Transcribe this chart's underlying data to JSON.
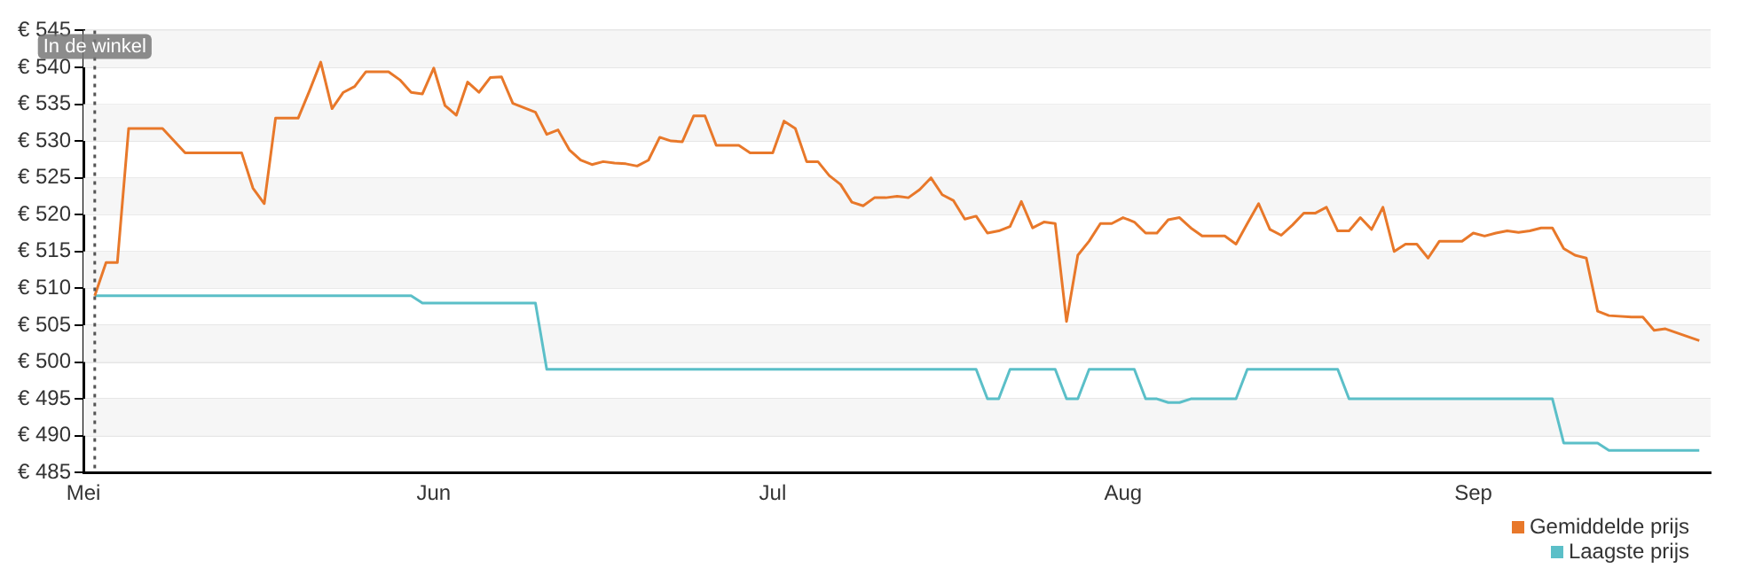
{
  "chart_data": {
    "type": "line",
    "legend": "bottom right",
    "grid": "y",
    "marker": "none",
    "line_style": "solid",
    "xlim": [
      "--05-01",
      "--09-22"
    ],
    "xticks": [
      {
        "value": "--05-01",
        "label": "Mei"
      },
      {
        "value": "--06-01",
        "label": "Jun"
      },
      {
        "value": "--07-01",
        "label": "Jul"
      },
      {
        "value": "--08-01",
        "label": "Aug"
      },
      {
        "value": "--09-01",
        "label": "Sep"
      }
    ],
    "ylim": [
      485,
      545
    ],
    "yticks": [
      {
        "value": 485,
        "label": "€ 485"
      },
      {
        "value": 490,
        "label": "€ 490"
      },
      {
        "value": 495,
        "label": "€ 495"
      },
      {
        "value": 500,
        "label": "€ 500"
      },
      {
        "value": 505,
        "label": "€ 505"
      },
      {
        "value": 510,
        "label": "€ 510"
      },
      {
        "value": 515,
        "label": "€ 515"
      },
      {
        "value": 520,
        "label": "€ 520"
      },
      {
        "value": 525,
        "label": "€ 525"
      },
      {
        "value": 530,
        "label": "€ 530"
      },
      {
        "value": 535,
        "label": "€ 535"
      },
      {
        "value": 540,
        "label": "€ 540"
      },
      {
        "value": 545,
        "label": "€ 545"
      }
    ],
    "ref_lines": [
      {
        "axis": "x",
        "value": "--05-02",
        "label": "In de winkel",
        "color": "#555555",
        "line_style": "dotted"
      }
    ],
    "series": [
      {
        "name": "Gemiddelde prijs",
        "color": "#e8782a",
        "x": [
          "--05-02",
          "--05-03",
          "--05-04",
          "--05-05",
          "--05-08",
          "--05-10",
          "--05-15",
          "--05-16",
          "--05-17",
          "--05-18",
          "--05-20",
          "--05-21",
          "--05-22",
          "--05-23",
          "--05-24",
          "--05-25",
          "--05-26",
          "--05-28",
          "--05-29",
          "--05-30",
          "--05-31",
          "--06-01",
          "--06-02",
          "--06-03",
          "--06-04",
          "--06-05",
          "--06-06",
          "--06-07",
          "--06-08",
          "--06-10",
          "--06-11",
          "--06-12",
          "--06-13",
          "--06-14",
          "--06-15",
          "--06-16",
          "--06-17",
          "--06-18",
          "--06-19",
          "--06-20",
          "--06-21",
          "--06-22",
          "--06-23",
          "--06-24",
          "--06-25",
          "--06-26",
          "--06-28",
          "--06-29",
          "--07-01",
          "--07-02",
          "--07-03",
          "--07-04",
          "--07-05",
          "--07-06",
          "--07-07",
          "--07-08",
          "--07-09",
          "--07-10",
          "--07-11",
          "--07-12",
          "--07-13",
          "--07-14",
          "--07-15",
          "--07-16",
          "--07-17",
          "--07-18",
          "--07-19",
          "--07-20",
          "--07-21",
          "--07-22",
          "--07-23",
          "--07-24",
          "--07-25",
          "--07-26",
          "--07-27",
          "--07-28",
          "--07-29",
          "--07-30",
          "--07-31",
          "--08-01",
          "--08-02",
          "--08-03",
          "--08-04",
          "--08-05",
          "--08-06",
          "--08-07",
          "--08-08",
          "--08-10",
          "--08-11",
          "--08-12",
          "--08-13",
          "--08-14",
          "--08-15",
          "--08-16",
          "--08-17",
          "--08-18",
          "--08-19",
          "--08-20",
          "--08-21",
          "--08-22",
          "--08-23",
          "--08-24",
          "--08-25",
          "--08-26",
          "--08-27",
          "--08-28",
          "--08-29",
          "--08-31",
          "--09-01",
          "--09-02",
          "--09-03",
          "--09-04",
          "--09-05",
          "--09-06",
          "--09-07",
          "--09-08",
          "--09-09",
          "--09-10",
          "--09-11",
          "--09-12",
          "--09-13",
          "--09-15",
          "--09-16",
          "--09-17",
          "--09-18",
          "--09-21"
        ],
        "values": [
          509,
          513.5,
          513.5,
          531.7,
          531.7,
          528.4,
          528.4,
          523.6,
          521.5,
          533.1,
          533.1,
          536.8,
          540.7,
          534.4,
          536.6,
          537.4,
          539.4,
          539.4,
          538.3,
          536.6,
          536.4,
          539.9,
          534.8,
          533.5,
          538,
          536.6,
          538.6,
          538.7,
          535.1,
          533.9,
          530.9,
          531.5,
          528.8,
          527.4,
          526.8,
          527.2,
          527,
          526.9,
          526.6,
          527.4,
          530.5,
          530,
          529.9,
          533.4,
          533.4,
          529.4,
          529.4,
          528.4,
          528.4,
          532.7,
          531.7,
          527.2,
          527.2,
          525.3,
          524.1,
          521.7,
          521.2,
          522.3,
          522.3,
          522.5,
          522.3,
          523.4,
          525,
          522.7,
          521.9,
          519.4,
          519.8,
          517.5,
          517.8,
          518.4,
          521.8,
          518.2,
          519,
          518.8,
          505.5,
          514.5,
          516.4,
          518.8,
          518.8,
          519.6,
          519,
          517.5,
          517.5,
          519.3,
          519.6,
          518.2,
          517.1,
          517.1,
          516,
          518.8,
          521.5,
          518,
          517.2,
          518.6,
          520.2,
          520.2,
          521,
          517.8,
          517.8,
          519.6,
          518,
          521,
          515,
          516,
          516,
          514.1,
          516.4,
          516.4,
          517.5,
          517.1,
          517.5,
          517.8,
          517.6,
          517.8,
          518.2,
          518.2,
          515.4,
          514.5,
          514.1,
          506.9,
          506.3,
          506.1,
          506.1,
          504.3,
          504.5,
          502.9
        ]
      },
      {
        "name": "Laagste prijs",
        "color": "#5bbfc8",
        "x": [
          "--05-02",
          "--05-30",
          "--05-31",
          "--06-10",
          "--06-11",
          "--07-19",
          "--07-20",
          "--07-21",
          "--07-22",
          "--07-26",
          "--07-27",
          "--07-28",
          "--07-29",
          "--08-02",
          "--08-03",
          "--08-04",
          "--08-05",
          "--08-06",
          "--08-07",
          "--08-11",
          "--08-12",
          "--08-20",
          "--08-21",
          "--09-08",
          "--09-09",
          "--09-12",
          "--09-13",
          "--09-21"
        ],
        "values": [
          509,
          509,
          508,
          508,
          499,
          499,
          495,
          495,
          499,
          499,
          495,
          495,
          499,
          499,
          495,
          495,
          494.5,
          494.5,
          495,
          495,
          499,
          499,
          495,
          495,
          489,
          489,
          488,
          488
        ]
      }
    ]
  }
}
